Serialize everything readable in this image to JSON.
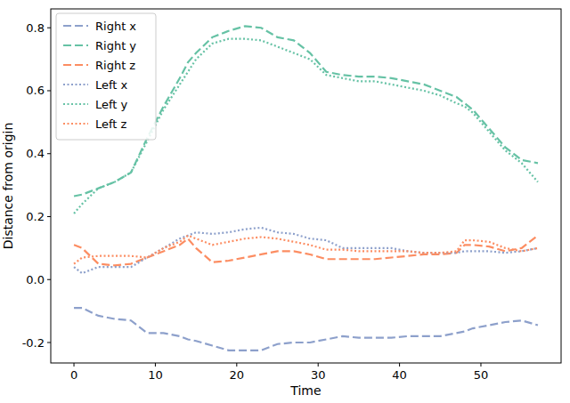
{
  "chart_data": {
    "type": "line",
    "x_label": "Time",
    "y_label": "Distance from origin",
    "x": [
      0,
      1,
      3,
      5,
      7,
      9,
      11,
      13,
      14,
      15,
      17,
      19,
      21,
      23,
      25,
      27,
      29,
      31,
      33,
      35,
      37,
      39,
      41,
      43,
      45,
      47,
      48,
      49,
      51,
      53,
      55,
      57
    ],
    "series": [
      {
        "name": "Right x",
        "color": "#8da0cb",
        "line_style": "dashed",
        "values": [
          -0.09,
          -0.09,
          -0.115,
          -0.125,
          -0.13,
          -0.17,
          -0.17,
          -0.18,
          -0.19,
          -0.195,
          -0.21,
          -0.225,
          -0.225,
          -0.225,
          -0.205,
          -0.2,
          -0.2,
          -0.19,
          -0.18,
          -0.185,
          -0.185,
          -0.185,
          -0.18,
          -0.18,
          -0.18,
          -0.17,
          -0.165,
          -0.155,
          -0.145,
          -0.135,
          -0.13,
          -0.145
        ]
      },
      {
        "name": "Right y",
        "color": "#66c2a5",
        "line_style": "dashed",
        "values": [
          0.265,
          0.27,
          0.29,
          0.31,
          0.34,
          0.45,
          0.55,
          0.64,
          0.69,
          0.72,
          0.77,
          0.79,
          0.805,
          0.8,
          0.77,
          0.76,
          0.72,
          0.66,
          0.65,
          0.645,
          0.645,
          0.64,
          0.63,
          0.62,
          0.6,
          0.58,
          0.56,
          0.54,
          0.48,
          0.42,
          0.38,
          0.37
        ]
      },
      {
        "name": "Right z",
        "color": "#fc8d62",
        "line_style": "dashed",
        "values": [
          0.11,
          0.1,
          0.05,
          0.045,
          0.05,
          0.07,
          0.09,
          0.11,
          0.13,
          0.1,
          0.055,
          0.06,
          0.07,
          0.08,
          0.09,
          0.09,
          0.08,
          0.065,
          0.065,
          0.065,
          0.065,
          0.07,
          0.075,
          0.08,
          0.08,
          0.085,
          0.11,
          0.11,
          0.105,
          0.09,
          0.1,
          0.14
        ]
      },
      {
        "name": "Left x",
        "color": "#8da0cb",
        "line_style": "dotted",
        "values": [
          0.04,
          0.02,
          0.04,
          0.04,
          0.04,
          0.07,
          0.1,
          0.13,
          0.14,
          0.15,
          0.145,
          0.15,
          0.16,
          0.165,
          0.15,
          0.145,
          0.13,
          0.125,
          0.1,
          0.1,
          0.1,
          0.1,
          0.09,
          0.085,
          0.085,
          0.085,
          0.09,
          0.09,
          0.09,
          0.085,
          0.09,
          0.1
        ]
      },
      {
        "name": "Left y",
        "color": "#66c2a5",
        "line_style": "dotted",
        "values": [
          0.21,
          0.24,
          0.29,
          0.31,
          0.34,
          0.44,
          0.54,
          0.62,
          0.66,
          0.7,
          0.75,
          0.765,
          0.765,
          0.76,
          0.74,
          0.72,
          0.7,
          0.65,
          0.64,
          0.63,
          0.63,
          0.62,
          0.61,
          0.6,
          0.585,
          0.56,
          0.55,
          0.53,
          0.47,
          0.41,
          0.37,
          0.31
        ]
      },
      {
        "name": "Left z",
        "color": "#fc8d62",
        "line_style": "dotted",
        "values": [
          0.05,
          0.07,
          0.075,
          0.075,
          0.075,
          0.07,
          0.1,
          0.12,
          0.14,
          0.13,
          0.11,
          0.12,
          0.13,
          0.135,
          0.13,
          0.12,
          0.11,
          0.095,
          0.095,
          0.09,
          0.09,
          0.09,
          0.09,
          0.085,
          0.085,
          0.09,
          0.125,
          0.125,
          0.12,
          0.1,
          0.09,
          0.1
        ]
      }
    ],
    "xlim": [
      -2.85,
      59.85
    ],
    "xticks": [
      0,
      10,
      20,
      30,
      40,
      50
    ],
    "ylim": [
      -0.265,
      0.86
    ],
    "yticks": [
      {
        "value": -0.2,
        "label": "-0.2"
      },
      {
        "value": 0,
        "label": "0.0"
      },
      {
        "value": 0.2,
        "label": "0.2"
      },
      {
        "value": 0.4,
        "label": "0.4"
      },
      {
        "value": 0.6,
        "label": "0.6"
      },
      {
        "value": 0.8,
        "label": "0.8"
      }
    ],
    "grid": false,
    "legend": "upper left"
  }
}
